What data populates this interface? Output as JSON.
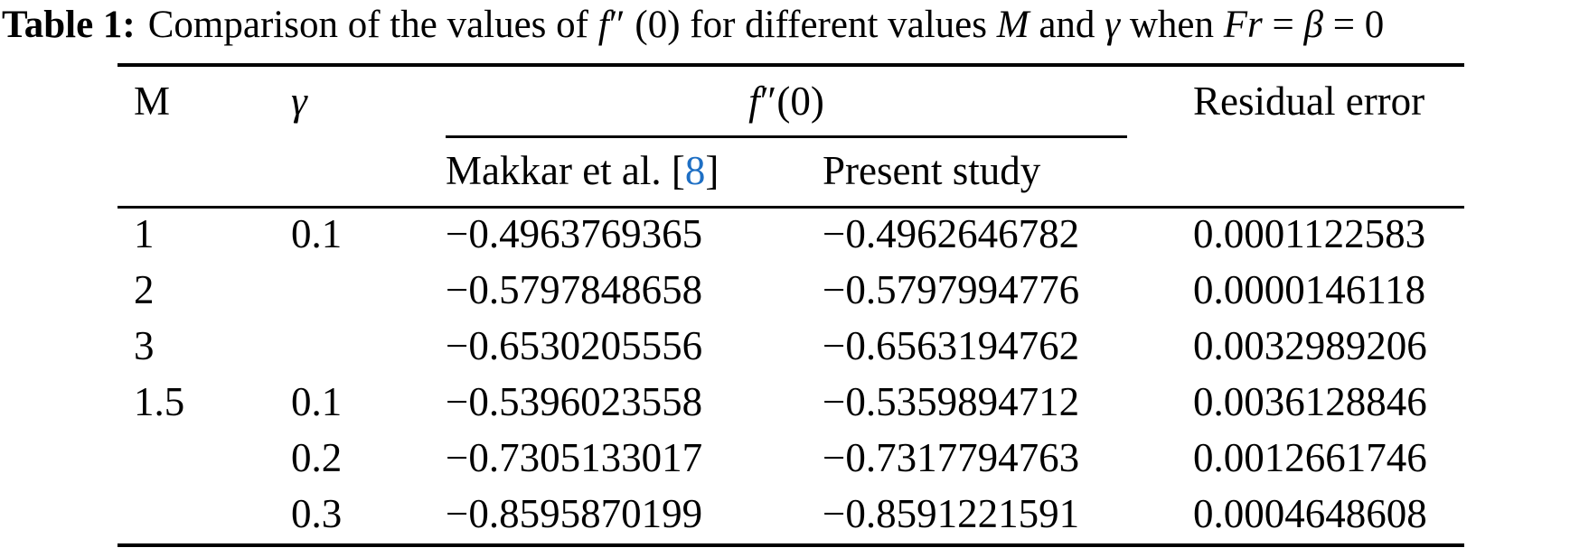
{
  "caption": {
    "label": "Table 1:",
    "c1": "Comparison of the values of ",
    "f": "f",
    "fprime": "″",
    "c2": " (0) for different values ",
    "M": "M",
    "c3": " and ",
    "gamma": "γ",
    "c4": " when ",
    "Fr": "Fr",
    "c5": " = ",
    "beta": "β",
    "c6": " = 0"
  },
  "table": {
    "col_m": "M",
    "col_gamma": "γ",
    "spanner_f": "f",
    "spanner_prime": "″",
    "spanner_rest": " (0)",
    "makkar_pre": "Makkar et al. [",
    "makkar_cite": "8",
    "makkar_post": "]",
    "col_present": "Present study",
    "col_residual": "Residual error",
    "link_color": "#1e6fc4",
    "rule_color": "#000000",
    "rows": [
      {
        "m": "1",
        "gamma": "0.1",
        "makkar": "−0.4963769365",
        "present": "−0.4962646782",
        "residual": "0.0001122583"
      },
      {
        "m": "2",
        "gamma": "",
        "makkar": "−0.5797848658",
        "present": "−0.5797994776",
        "residual": "0.0000146118"
      },
      {
        "m": "3",
        "gamma": "",
        "makkar": "−0.6530205556",
        "present": "−0.6563194762",
        "residual": "0.0032989206"
      },
      {
        "m": "1.5",
        "gamma": "0.1",
        "makkar": "−0.5396023558",
        "present": "−0.5359894712",
        "residual": "0.0036128846"
      },
      {
        "m": "",
        "gamma": "0.2",
        "makkar": "−0.7305133017",
        "present": "−0.7317794763",
        "residual": "0.0012661746"
      },
      {
        "m": "",
        "gamma": "0.3",
        "makkar": "−0.8595870199",
        "present": "−0.8591221591",
        "residual": "0.0004648608"
      }
    ]
  }
}
